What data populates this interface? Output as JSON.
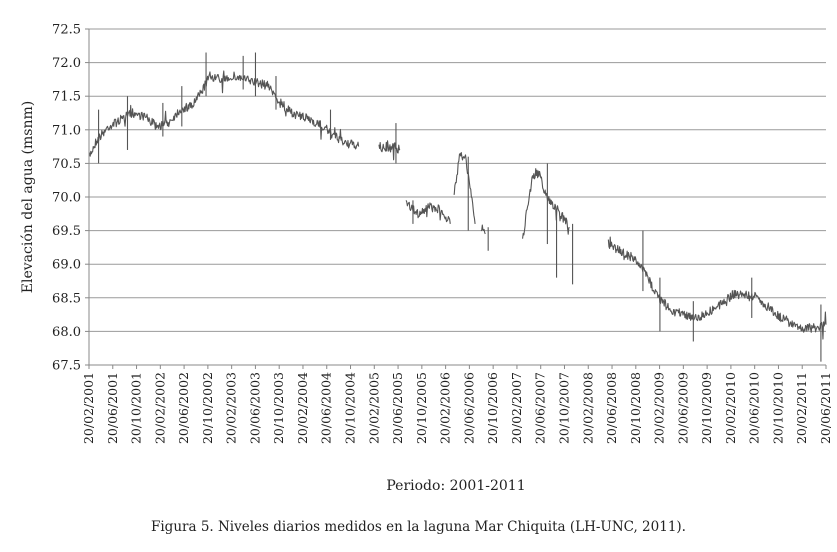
{
  "chart_data": {
    "type": "line",
    "title": "",
    "ylabel": "Elevación del agua (msnm)",
    "xlabel": "Periodo: 2001-2011",
    "ylim": [
      67.5,
      72.5
    ],
    "yticks": [
      "72.5",
      "72.0",
      "71.5",
      "71.0",
      "70.5",
      "70.0",
      "69.5",
      "69.0",
      "68.5",
      "68.0",
      "67.5"
    ],
    "grid": "horizontal",
    "x_tick_labels": [
      "20/02/2001",
      "20/06/2001",
      "20/10/2001",
      "20/02/2002",
      "20/06/2002",
      "20/10/2002",
      "20/02/2003",
      "20/06/2003",
      "20/10/2003",
      "20/02/2004",
      "20/06/2004",
      "20/10/2004",
      "20/02/2005",
      "20/06/2005",
      "20/10/2005",
      "20/02/2006",
      "20/06/2006",
      "20/10/2006",
      "20/02/2007",
      "20/06/2007",
      "20/10/2007",
      "20/02/2008",
      "20/06/2008",
      "20/10/2008",
      "20/02/2009",
      "20/06/2009",
      "20/10/2009",
      "20/02/2010",
      "20/06/2010",
      "20/10/2010",
      "20/02/2011",
      "20/06/2011"
    ],
    "series": [
      {
        "color": "#555555",
        "segments": [
          [
            [
              "2001-02-20",
              70.6
            ],
            [
              "2001-04-01",
              70.85
            ],
            [
              "2001-06-01",
              71.05
            ],
            [
              "2001-08-01",
              71.15
            ],
            [
              "2001-10-01",
              71.25
            ],
            [
              "2001-12-01",
              71.2
            ],
            [
              "2002-02-01",
              71.05
            ],
            [
              "2002-04-01",
              71.1
            ],
            [
              "2002-06-01",
              71.3
            ],
            [
              "2002-08-01",
              71.35
            ],
            [
              "2002-09-15",
              71.55
            ],
            [
              "2002-11-01",
              71.8
            ],
            [
              "2003-01-01",
              71.75
            ],
            [
              "2003-03-01",
              71.8
            ],
            [
              "2003-05-01",
              71.75
            ],
            [
              "2003-07-01",
              71.7
            ],
            [
              "2003-09-01",
              71.65
            ],
            [
              "2003-10-01",
              71.5
            ],
            [
              "2003-12-01",
              71.3
            ],
            [
              "2004-02-01",
              71.2
            ],
            [
              "2004-04-01",
              71.15
            ],
            [
              "2004-06-01",
              71.05
            ],
            [
              "2004-08-01",
              70.9
            ],
            [
              "2004-10-01",
              70.8
            ],
            [
              "2004-12-01",
              70.75
            ]
          ],
          [
            [
              "2005-03-15",
              70.75
            ],
            [
              "2005-05-01",
              70.7
            ],
            [
              "2005-06-01",
              70.75
            ],
            [
              "2005-07-01",
              70.7
            ]
          ],
          [
            [
              "2005-08-01",
              69.9
            ],
            [
              "2005-10-01",
              69.75
            ],
            [
              "2005-12-01",
              69.85
            ],
            [
              "2006-02-01",
              69.8
            ],
            [
              "2006-03-15",
              69.6
            ]
          ],
          [
            [
              "2006-04-01",
              70.0
            ],
            [
              "2006-05-01",
              70.6
            ],
            [
              "2006-06-01",
              70.6
            ],
            [
              "2006-07-01",
              70.0
            ],
            [
              "2006-07-20",
              69.6
            ]
          ],
          [
            [
              "2006-08-20",
              69.55
            ],
            [
              "2006-09-10",
              69.45
            ]
          ],
          [
            [
              "2007-03-20",
              69.35
            ],
            [
              "2007-04-15",
              69.9
            ],
            [
              "2007-05-10",
              70.3
            ],
            [
              "2007-06-15",
              70.35
            ],
            [
              "2007-07-20",
              70.0
            ],
            [
              "2007-08-20",
              69.9
            ],
            [
              "2007-10-01",
              69.75
            ],
            [
              "2007-11-15",
              69.55
            ]
          ],
          [
            [
              "2008-06-01",
              69.3
            ],
            [
              "2008-08-01",
              69.2
            ],
            [
              "2008-10-01",
              69.1
            ],
            [
              "2008-12-01",
              68.9
            ],
            [
              "2009-01-15",
              68.65
            ],
            [
              "2009-03-01",
              68.45
            ],
            [
              "2009-05-01",
              68.3
            ],
            [
              "2009-07-01",
              68.25
            ],
            [
              "2009-09-01",
              68.2
            ],
            [
              "2009-11-01",
              68.3
            ],
            [
              "2010-01-01",
              68.4
            ],
            [
              "2010-03-01",
              68.55
            ],
            [
              "2010-05-01",
              68.55
            ],
            [
              "2010-07-01",
              68.5
            ],
            [
              "2010-09-01",
              68.35
            ],
            [
              "2010-11-01",
              68.2
            ],
            [
              "2011-01-01",
              68.1
            ],
            [
              "2011-03-01",
              68.05
            ],
            [
              "2011-05-01",
              68.05
            ],
            [
              "2011-06-20",
              68.1
            ]
          ]
        ]
      }
    ],
    "spikes": [
      [
        "2001-04-10",
        70.5,
        71.3
      ],
      [
        "2001-09-05",
        70.7,
        71.5
      ],
      [
        "2002-03-05",
        70.9,
        71.4
      ],
      [
        "2002-06-10",
        71.05,
        71.65
      ],
      [
        "2002-10-12",
        71.5,
        72.15
      ],
      [
        "2003-04-20",
        71.6,
        72.1
      ],
      [
        "2003-06-22",
        71.5,
        72.15
      ],
      [
        "2003-10-05",
        71.3,
        71.8
      ],
      [
        "2004-07-10",
        70.85,
        71.3
      ],
      [
        "2005-06-10",
        70.5,
        71.1
      ],
      [
        "2005-09-05",
        69.6,
        69.95
      ],
      [
        "2006-06-15",
        69.5,
        70.6
      ],
      [
        "2006-09-25",
        69.2,
        69.55
      ],
      [
        "2007-07-25",
        69.3,
        70.5
      ],
      [
        "2007-09-10",
        68.8,
        69.8
      ],
      [
        "2007-12-01",
        68.7,
        69.6
      ],
      [
        "2008-11-25",
        68.6,
        69.5
      ],
      [
        "2009-02-20",
        68.0,
        68.8
      ],
      [
        "2009-08-10",
        67.85,
        68.45
      ],
      [
        "2010-06-05",
        68.2,
        68.8
      ],
      [
        "2011-05-25",
        67.55,
        68.4
      ]
    ]
  },
  "caption": "Figura 5. Niveles diarios medidos en la laguna Mar Chiquita (LH-UNC, 2011)."
}
